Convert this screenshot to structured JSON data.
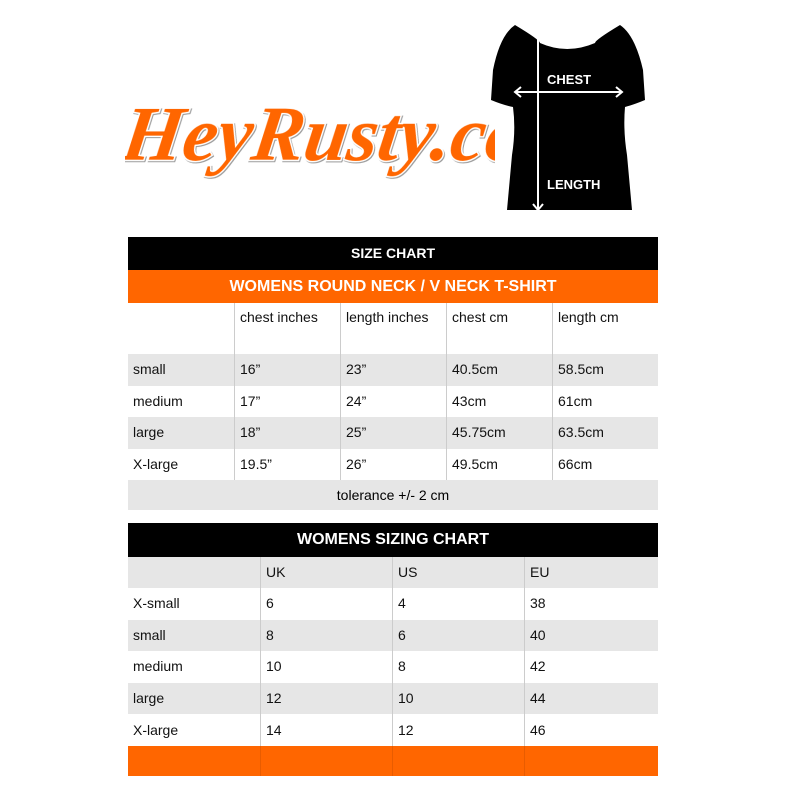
{
  "logo": {
    "text": "HeyRusty.co",
    "color": "#ff6600"
  },
  "shirt_diagram": {
    "chest_label": "CHEST",
    "length_label": "LENGTH"
  },
  "size_chart": {
    "title": "SIZE CHART",
    "subtitle": "WOMENS ROUND NECK  /  V NECK T-SHIRT",
    "columns": [
      "",
      "chest inches",
      "length inches",
      "chest cm",
      "length cm"
    ],
    "rows": [
      [
        "small",
        "16”",
        "23”",
        "40.5cm",
        "58.5cm"
      ],
      [
        "medium",
        "17”",
        "24”",
        "43cm",
        "61cm"
      ],
      [
        "large",
        "18”",
        "25”",
        "45.75cm",
        "63.5cm"
      ],
      [
        "X-large",
        "19.5”",
        "26”",
        "49.5cm",
        "66cm"
      ]
    ],
    "footer": "tolerance +/- 2 cm"
  },
  "sizing_chart": {
    "title": "WOMENS SIZING CHART",
    "columns": [
      "",
      "UK",
      "US",
      "EU"
    ],
    "rows": [
      [
        "X-small",
        "6",
        "4",
        "38"
      ],
      [
        "small",
        "8",
        "6",
        "40"
      ],
      [
        "medium",
        "10",
        "8",
        "42"
      ],
      [
        "large",
        "12",
        "10",
        "44"
      ],
      [
        "X-large",
        "14",
        "12",
        "46"
      ]
    ]
  },
  "colors": {
    "accent": "#ff6600",
    "header": "#000000",
    "stripe": "#e6e6e6"
  }
}
